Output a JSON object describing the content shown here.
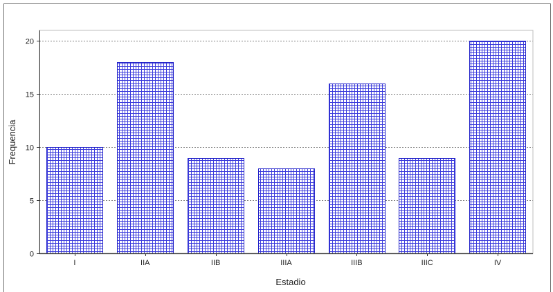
{
  "chart_data": {
    "type": "bar",
    "categories": [
      "I",
      "IIA",
      "IIB",
      "IIIA",
      "IIIB",
      "IIIC",
      "IV"
    ],
    "values": [
      10,
      18,
      9,
      8,
      16,
      9,
      20
    ],
    "xlabel": "Estadio",
    "ylabel": "Frequencia",
    "ylim": [
      0,
      21
    ],
    "yticks": [
      0,
      5,
      10,
      15,
      20
    ],
    "grid": true,
    "bar_fill": "crosshatch",
    "colors": {
      "bar": "#3b3bdc",
      "bar_edge": "#2020c8",
      "grid": "#555555",
      "axis": "#333333"
    }
  }
}
